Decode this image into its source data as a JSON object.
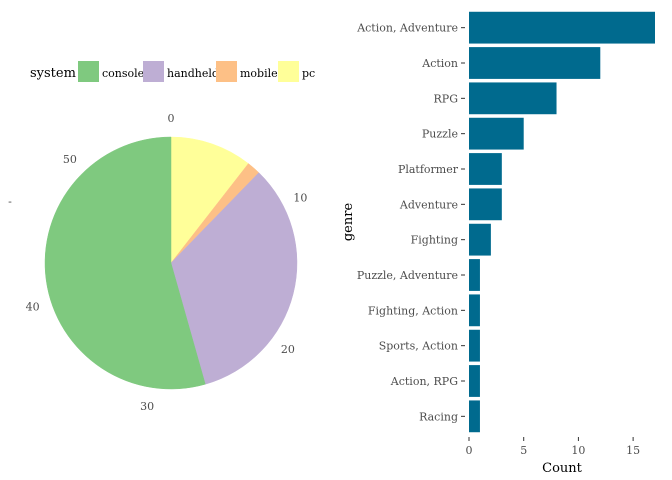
{
  "chart_data": [
    {
      "type": "pie",
      "legend": {
        "title": "system",
        "position": "top",
        "entries": [
          {
            "label": "console",
            "color": "#7FC97F"
          },
          {
            "label": "handheld",
            "color": "#BEAED4"
          },
          {
            "label": "mobile",
            "color": "#FDC086"
          },
          {
            "label": "pc",
            "color": "#FFFF99"
          }
        ]
      },
      "slices": [
        {
          "label": "pc",
          "value": 6,
          "color": "#FFFF99"
        },
        {
          "label": "mobile",
          "value": 1,
          "color": "#FDC086"
        },
        {
          "label": "handheld",
          "value": 19,
          "color": "#BEAED4"
        },
        {
          "label": "console",
          "value": 31,
          "color": "#7FC97F"
        }
      ],
      "total": 57,
      "ticks": [
        0,
        10,
        20,
        30,
        40,
        50
      ],
      "left_axis_label": "-"
    },
    {
      "type": "bar",
      "orientation": "horizontal",
      "xlabel": "Count",
      "ylabel": "genre",
      "xlim": [
        0,
        17
      ],
      "xticks": [
        0,
        5,
        10,
        15
      ],
      "bar_color": "#006A8E",
      "grid": false,
      "categories": [
        "Action, Adventure",
        "Action",
        "RPG",
        "Puzzle",
        "Platformer",
        "Adventure",
        "Fighting",
        "Puzzle, Adventure",
        "Fighting, Action",
        "Sports, Action",
        "Action, RPG",
        "Racing"
      ],
      "values": [
        17,
        12,
        8,
        5,
        3,
        3,
        2,
        1,
        1,
        1,
        1,
        1
      ]
    }
  ]
}
